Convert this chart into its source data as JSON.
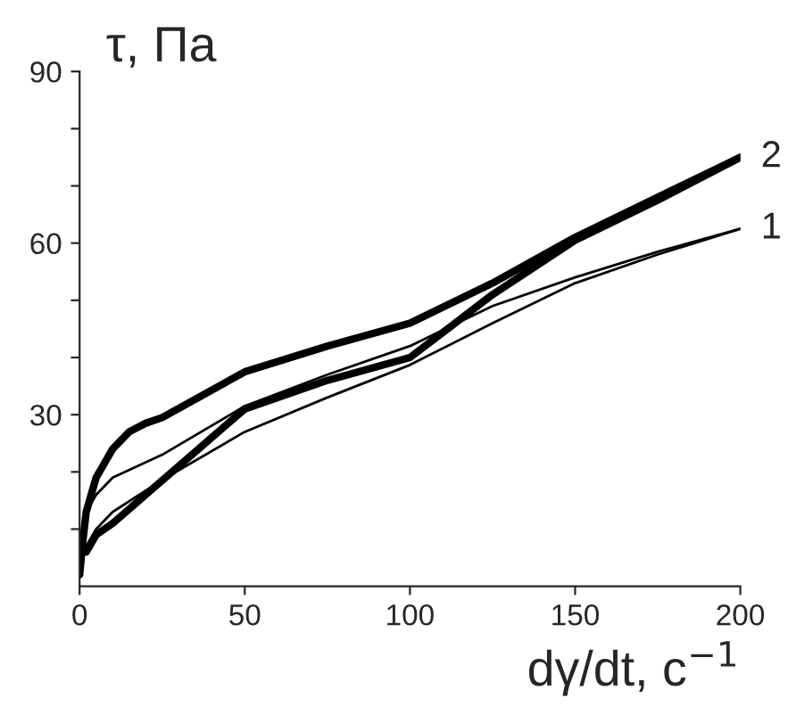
{
  "chart_data": {
    "type": "line",
    "xlabel": "dγ/dt, с$^{−1}$",
    "ylabel": "τ, Па",
    "series": [
      {
        "name": "2",
        "color": "#000000",
        "x": [
          0,
          1,
          2,
          5,
          10,
          15,
          20,
          25,
          50,
          75,
          100,
          125,
          150,
          175,
          200
        ],
        "values": [
          2,
          8,
          13,
          19,
          24,
          27,
          28.5,
          29.5,
          37.5,
          42,
          46,
          53,
          61,
          68,
          75
        ]
      },
      {
        "color": "#000000",
        "x": [
          200,
          175,
          150,
          125,
          100,
          75,
          50,
          25,
          10,
          5,
          2
        ],
        "values": [
          75,
          67.5,
          60.5,
          51,
          40,
          36,
          31,
          18.5,
          11,
          9,
          6
        ]
      },
      {
        "name": "1",
        "color": "#000000",
        "x": [
          0,
          1,
          2,
          5,
          10,
          25,
          50,
          75,
          100,
          125,
          150,
          175,
          200
        ],
        "values": [
          2,
          8,
          13,
          16,
          19,
          23,
          31.5,
          37,
          42,
          49,
          54,
          58.5,
          62.5
        ]
      },
      {
        "color": "#000000",
        "x": [
          200,
          175,
          150,
          125,
          100,
          75,
          50,
          25,
          10,
          5,
          2
        ],
        "values": [
          62.5,
          58,
          53,
          46,
          38.7,
          33,
          27,
          18.6,
          13,
          10,
          7
        ]
      }
    ],
    "xlim": [
      0,
      200
    ],
    "xticks": [
      0,
      50,
      100,
      150,
      200
    ],
    "ylim": [
      0,
      90
    ],
    "yticks": [
      {
        "value": 10,
        "label": null
      },
      {
        "value": 20,
        "label": null
      },
      30,
      {
        "value": 40,
        "label": null
      },
      {
        "value": 50,
        "label": null
      },
      60,
      {
        "value": 70,
        "label": null
      },
      {
        "value": 80,
        "label": null
      },
      90
    ],
    "grid": false,
    "legend": false
  }
}
